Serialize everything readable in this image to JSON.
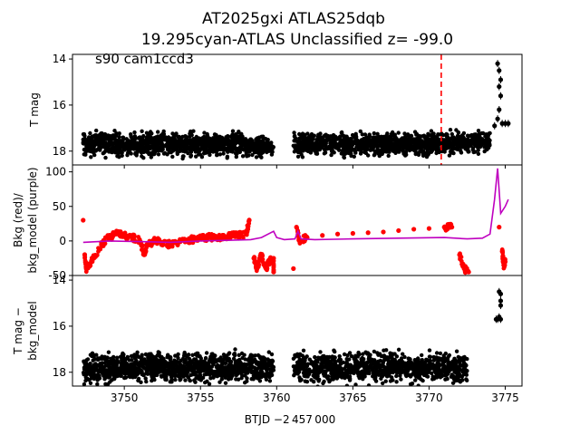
{
  "figure": {
    "title_line1": "AT2025gxi  ATLAS25dqb",
    "title_line2": "19.295cyan-ATLAS Unclassified z= -99.0",
    "annotation": "s90 cam1ccd3",
    "shared_xlabel": "BTJD −2 457 000"
  },
  "colors": {
    "mag": "#000000",
    "bkg": "#ff0000",
    "bkg_model": "#bf00bf",
    "marker_line": "#ff0000"
  },
  "chart_data": [
    {
      "type": "scatter",
      "panel": "top",
      "ylabel": "T mag",
      "xlim": [
        3746.6,
        3776.1
      ],
      "ylim": [
        18.6,
        13.8
      ],
      "y_inverted": true,
      "yticks": [
        14,
        16,
        18
      ],
      "xticks": [
        3750,
        3755,
        3760,
        3765,
        3770,
        3775
      ],
      "vline_x": 3770.8,
      "series": [
        {
          "color": "black",
          "segments": [
            {
              "x_start": 3747.3,
              "x_end": 3758.0,
              "y_center": 17.7,
              "y_spread": 0.35
            },
            {
              "x_start": 3758.0,
              "x_end": 3759.8,
              "y_center": 17.8,
              "y_spread": 0.3
            },
            {
              "x_start": 3761.1,
              "x_end": 3772.0,
              "y_center": 17.7,
              "y_spread": 0.35
            },
            {
              "x_start": 3772.0,
              "x_end": 3774.0,
              "y_center": 17.6,
              "y_spread": 0.3
            }
          ],
          "flare_points": [
            [
              3774.3,
              16.9
            ],
            [
              3774.5,
              16.6
            ],
            [
              3774.6,
              16.2
            ],
            [
              3774.8,
              16.8
            ],
            [
              3775.0,
              16.8
            ],
            [
              3775.2,
              16.8
            ],
            [
              3774.5,
              14.2
            ],
            [
              3774.6,
              14.5
            ],
            [
              3774.6,
              15.2
            ],
            [
              3774.7,
              15.6
            ],
            [
              3774.7,
              14.9
            ]
          ]
        }
      ]
    },
    {
      "type": "scatter",
      "panel": "middle",
      "ylabel": "Bkg (red)/\nbkg_model (purple)",
      "xlim": [
        3746.6,
        3776.1
      ],
      "ylim": [
        -50,
        110
      ],
      "yticks": [
        -50,
        0,
        50,
        100
      ],
      "series": [
        {
          "name": "Bkg",
          "color": "red",
          "points": [
            [
              3747.3,
              30
            ],
            [
              3747.4,
              -20
            ],
            [
              3747.5,
              -40
            ],
            [
              3747.7,
              -35
            ],
            [
              3748.0,
              -25
            ],
            [
              3748.5,
              -5
            ],
            [
              3749.0,
              5
            ],
            [
              3749.5,
              10
            ],
            [
              3750.0,
              8
            ],
            [
              3750.5,
              5
            ],
            [
              3751.0,
              2
            ],
            [
              3751.3,
              -20
            ],
            [
              3751.5,
              -5
            ],
            [
              3752.0,
              0
            ],
            [
              3752.5,
              -2
            ],
            [
              3753.0,
              -5
            ],
            [
              3753.5,
              -3
            ],
            [
              3754.0,
              0
            ],
            [
              3754.5,
              2
            ],
            [
              3755.0,
              4
            ],
            [
              3755.5,
              5
            ],
            [
              3756.0,
              6
            ],
            [
              3756.5,
              5
            ],
            [
              3757.0,
              7
            ],
            [
              3757.5,
              8
            ],
            [
              3758.0,
              10
            ],
            [
              3758.2,
              30
            ],
            [
              3758.5,
              -25
            ],
            [
              3758.7,
              -40
            ],
            [
              3759.0,
              -20
            ],
            [
              3759.3,
              -40
            ],
            [
              3759.5,
              -30
            ],
            [
              3759.8,
              -25
            ],
            [
              3759.8,
              -45
            ],
            [
              3761.1,
              -40
            ],
            [
              3761.3,
              20
            ],
            [
              3761.5,
              0
            ],
            [
              3762.0,
              5
            ],
            [
              3763.0,
              8
            ],
            [
              3764.0,
              10
            ],
            [
              3765.0,
              11
            ],
            [
              3766.0,
              12
            ],
            [
              3767.0,
              13
            ],
            [
              3768.0,
              15
            ],
            [
              3769.0,
              17
            ],
            [
              3770.0,
              18
            ],
            [
              3771.0,
              20
            ],
            [
              3771.5,
              20
            ],
            [
              3772.0,
              -20
            ],
            [
              3772.3,
              -40
            ],
            [
              3772.6,
              -45
            ],
            [
              3774.6,
              20
            ],
            [
              3774.8,
              -15
            ],
            [
              3774.9,
              -35
            ],
            [
              3775.0,
              -30
            ]
          ]
        },
        {
          "name": "bkg_model",
          "color": "purple",
          "points": [
            [
              3747.3,
              -2
            ],
            [
              3749.0,
              0
            ],
            [
              3751.0,
              -1
            ],
            [
              3753.0,
              -2
            ],
            [
              3755.0,
              0
            ],
            [
              3757.0,
              1
            ],
            [
              3758.3,
              2
            ],
            [
              3759.0,
              5
            ],
            [
              3759.8,
              14
            ],
            [
              3760.0,
              5
            ],
            [
              3760.5,
              2
            ],
            [
              3761.2,
              3
            ],
            [
              3761.4,
              14
            ],
            [
              3761.6,
              3
            ],
            [
              3762.5,
              2
            ],
            [
              3765.0,
              3
            ],
            [
              3768.0,
              4
            ],
            [
              3771.0,
              5
            ],
            [
              3772.5,
              3
            ],
            [
              3773.5,
              4
            ],
            [
              3774.0,
              10
            ],
            [
              3774.3,
              60
            ],
            [
              3774.5,
              105
            ],
            [
              3774.7,
              40
            ],
            [
              3775.0,
              50
            ],
            [
              3775.2,
              60
            ]
          ]
        }
      ]
    },
    {
      "type": "scatter",
      "panel": "bottom",
      "ylabel": "T mag −\nbkg_model",
      "xlim": [
        3746.6,
        3776.1
      ],
      "ylim": [
        18.6,
        13.8
      ],
      "y_inverted": true,
      "yticks": [
        14,
        16,
        18
      ],
      "xticks": [
        3750,
        3755,
        3760,
        3765,
        3770,
        3775
      ],
      "xlabel": "BTJD −2 457 000",
      "series": [
        {
          "color": "black",
          "segments": [
            {
              "x_start": 3747.3,
              "x_end": 3759.8,
              "y_center": 17.8,
              "y_spread": 0.45
            },
            {
              "x_start": 3761.1,
              "x_end": 3772.5,
              "y_center": 17.8,
              "y_spread": 0.45
            }
          ],
          "flare_points": [
            [
              3774.4,
              15.7
            ],
            [
              3774.5,
              15.7
            ],
            [
              3774.6,
              15.6
            ],
            [
              3774.7,
              15.7
            ],
            [
              3774.6,
              14.5
            ],
            [
              3774.7,
              14.6
            ],
            [
              3774.7,
              14.9
            ],
            [
              3774.7,
              15.1
            ]
          ]
        }
      ]
    }
  ]
}
